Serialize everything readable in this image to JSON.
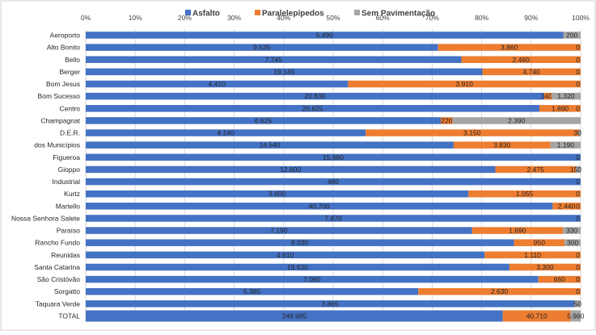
{
  "chart_data": {
    "type": "bar",
    "orientation": "horizontal",
    "stacked": "percent",
    "xlim": [
      0,
      100
    ],
    "x_ticks": [
      "0%",
      "10%",
      "20%",
      "30%",
      "40%",
      "50%",
      "60%",
      "70%",
      "80%",
      "90%",
      "100%"
    ],
    "legend_position": "top",
    "grid": true,
    "categories": [
      "Aeroporto",
      "Alto Bonito",
      "Bello",
      "Berger",
      "Bom Jesus",
      "Bom Sucesso",
      "Centro",
      "Champagnat",
      "D.E.R.",
      "dos Municípios",
      "Figueroa",
      "Gioppo",
      "Industrial",
      "Kurtz",
      "Martello",
      "Nossa Senhora Salete",
      "Paraíso",
      "Rancho Fundo",
      "Reunidas",
      "Santa Catarina",
      "São Cristóvão",
      "Sorgatto",
      "Taquara Verde",
      "TOTAL"
    ],
    "series": [
      {
        "name": "Asfalto",
        "color": "#4472C4",
        "values": [
          5490,
          9535,
          7745,
          19145,
          4410,
          20830,
          20825,
          6625,
          4140,
          14540,
          15680,
          12600,
          480,
          3600,
          40700,
          7870,
          7190,
          8030,
          4610,
          19630,
          7060,
          5385,
          3865,
          249985
        ],
        "labels": [
          "5.490",
          "9.535",
          "7.745",
          "19.145",
          "4.410",
          "20.830",
          "20.825",
          "6.625",
          "4.140",
          "14.540",
          "15.680",
          "12.600",
          "480",
          "3.600",
          "40.700",
          "7.870",
          "7.190",
          "8.030",
          "4.610",
          "19.630",
          "7.060",
          "5.385",
          "3.865",
          "249.985"
        ]
      },
      {
        "name": "Paralelepípedos",
        "color": "#ED7D31",
        "values": [
          0,
          3860,
          2460,
          4740,
          3910,
          340,
          1890,
          220,
          3150,
          3830,
          0,
          2475,
          0,
          1055,
          2440,
          0,
          1690,
          950,
          1110,
          3300,
          660,
          2630,
          0,
          40710
        ],
        "labels": [
          "0",
          "3.860",
          "2.460",
          "4.740",
          "3.910",
          "340",
          "1.890",
          "220",
          "3.150",
          "3.830",
          "",
          "2.475",
          "",
          "1.055",
          "2.440",
          "",
          "1.690",
          "950",
          "1.110",
          "3.300",
          "660",
          "2.630",
          "0",
          "40.710"
        ]
      },
      {
        "name": "Sem Pavimentação",
        "color": "#A5A5A5",
        "values": [
          200,
          0,
          0,
          0,
          0,
          1320,
          0,
          2390,
          30,
          1190,
          0,
          150,
          0,
          0,
          0,
          0,
          330,
          300,
          0,
          0,
          0,
          0,
          50,
          5960
        ],
        "labels": [
          "200",
          "0",
          "0",
          "0",
          "0",
          "1.320",
          "0",
          "2.390",
          "30",
          "1.190",
          "0",
          "150",
          "0",
          "0",
          "0",
          "0",
          "330",
          "300",
          "0",
          "0",
          "0",
          "0",
          "50",
          "5.960"
        ]
      }
    ]
  }
}
